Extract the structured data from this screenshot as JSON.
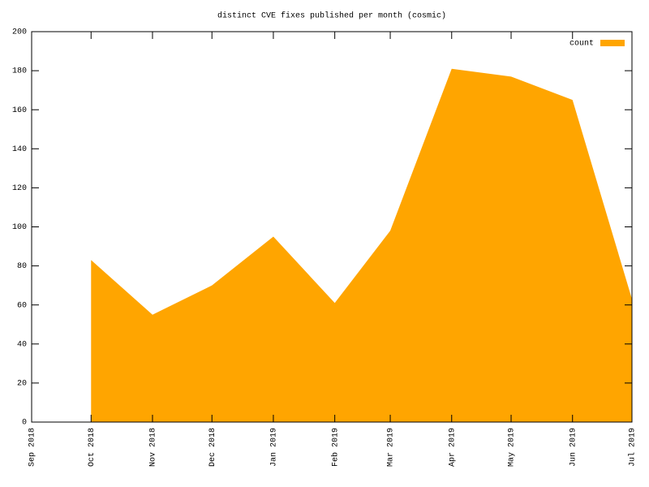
{
  "chart_data": {
    "type": "area",
    "title": "distinct CVE fixes published per month (cosmic)",
    "x": [
      "2018-10",
      "2018-11",
      "2018-12",
      "2019-01",
      "2019-02",
      "2019-03",
      "2019-04",
      "2019-05",
      "2019-06",
      "2019-07"
    ],
    "series": [
      {
        "name": "count",
        "color": "#ffa500",
        "values": [
          83,
          55,
          70,
          95,
          61,
          98,
          181,
          177,
          165,
          63
        ]
      }
    ],
    "xlim": [
      "2018-09",
      "2019-07"
    ],
    "xticks": [
      {
        "value": "2018-09",
        "label": "Sep 2018"
      },
      {
        "value": "2018-10",
        "label": "Oct 2018"
      },
      {
        "value": "2018-11",
        "label": "Nov 2018"
      },
      {
        "value": "2018-12",
        "label": "Dec 2018"
      },
      {
        "value": "2019-01",
        "label": "Jan 2019"
      },
      {
        "value": "2019-02",
        "label": "Feb 2019"
      },
      {
        "value": "2019-03",
        "label": "Mar 2019"
      },
      {
        "value": "2019-04",
        "label": "Apr 2019"
      },
      {
        "value": "2019-05",
        "label": "May 2019"
      },
      {
        "value": "2019-06",
        "label": "Jun 2019"
      },
      {
        "value": "2019-07",
        "label": "Jul 2019"
      }
    ],
    "ylim": [
      0,
      200
    ],
    "yticks": [
      0,
      20,
      40,
      60,
      80,
      100,
      120,
      140,
      160,
      180,
      200
    ],
    "legend": "top-right",
    "grid": false
  }
}
